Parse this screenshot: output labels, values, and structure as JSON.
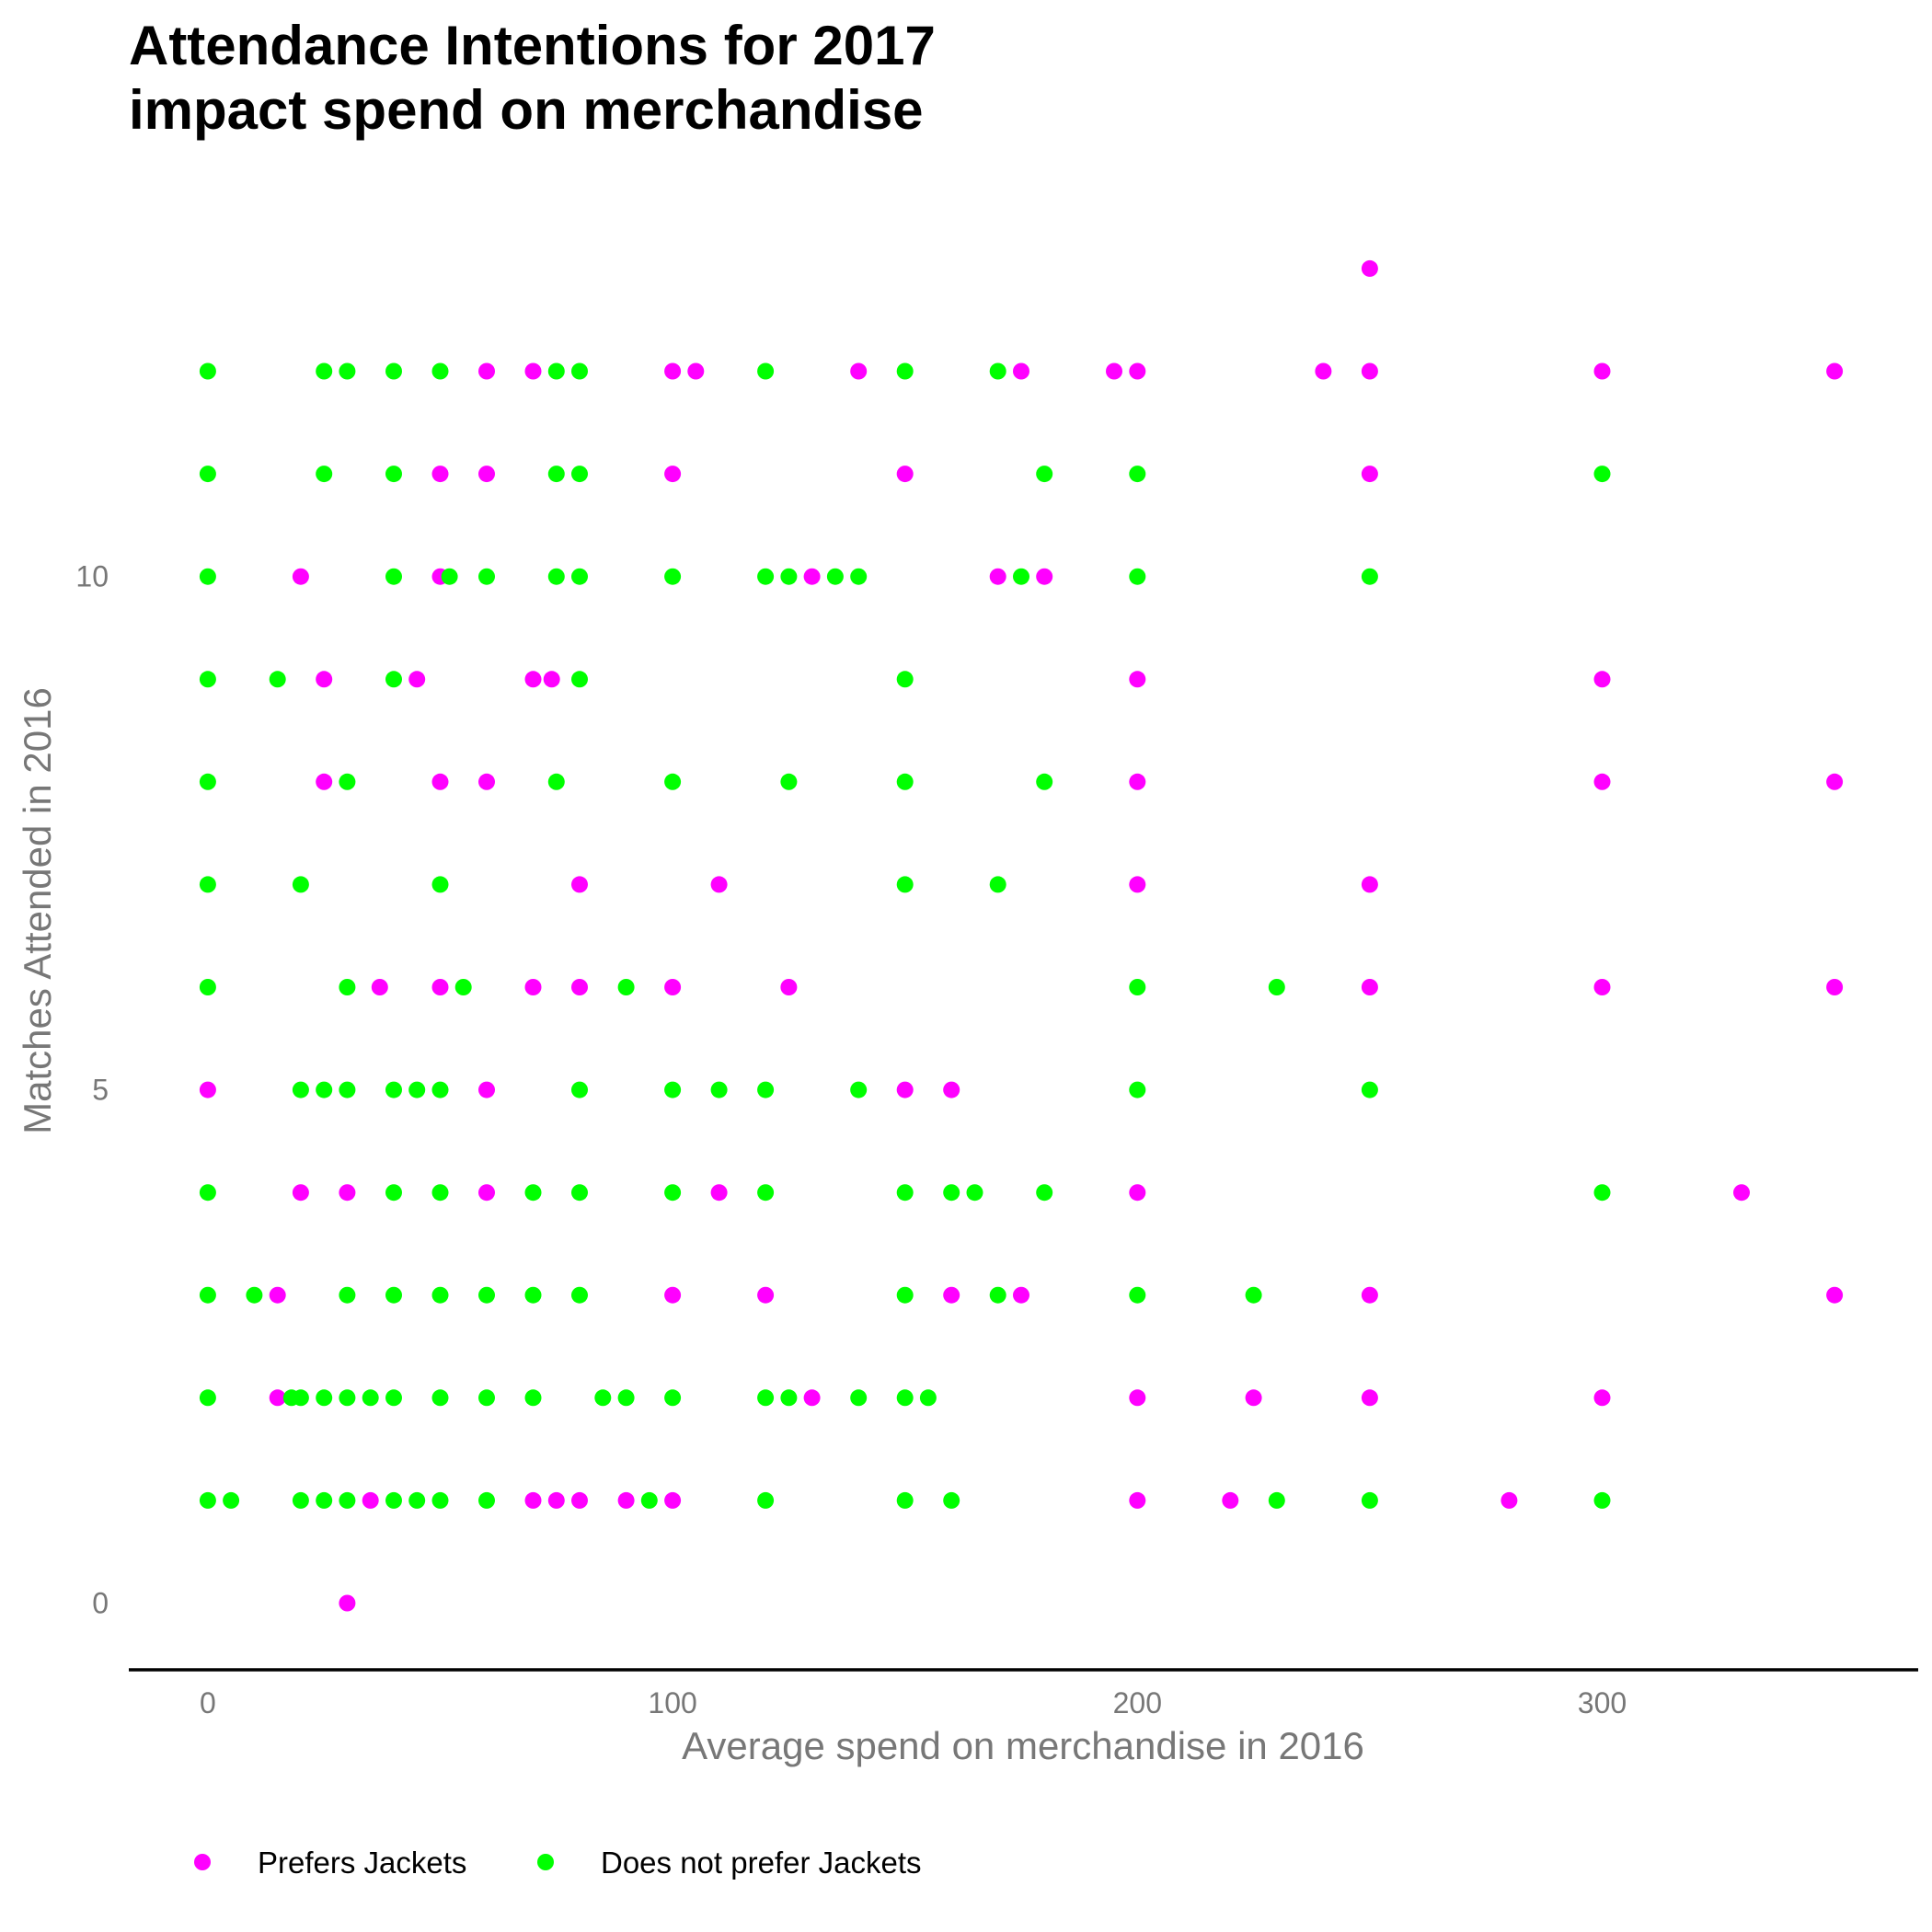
{
  "chart_data": {
    "type": "scatter",
    "title_lines": [
      "Attendance Intentions for 2017",
      "impact spend on merchandise"
    ],
    "xlabel": "Average spend on merchandise in 2016",
    "ylabel": "Matches Attended in 2016",
    "xlim": [
      -17,
      368
    ],
    "ylim": [
      -0.65,
      13.6
    ],
    "x_ticks": [
      0,
      100,
      200,
      300
    ],
    "y_ticks": [
      0,
      5,
      10
    ],
    "grid": false,
    "legend_position": "bottom-left",
    "series": [
      {
        "name": "Prefers Jackets",
        "color": "#ff00ff",
        "points": [
          [
            250,
            13
          ],
          [
            60,
            12
          ],
          [
            70,
            12
          ],
          [
            100,
            12
          ],
          [
            105,
            12
          ],
          [
            140,
            12
          ],
          [
            175,
            12
          ],
          [
            195,
            12
          ],
          [
            200,
            12
          ],
          [
            240,
            12
          ],
          [
            250,
            12
          ],
          [
            300,
            12
          ],
          [
            350,
            12
          ],
          [
            50,
            11
          ],
          [
            60,
            11
          ],
          [
            100,
            11
          ],
          [
            150,
            11
          ],
          [
            250,
            11
          ],
          [
            20,
            10
          ],
          [
            50,
            10
          ],
          [
            130,
            10
          ],
          [
            170,
            10
          ],
          [
            180,
            10
          ],
          [
            25,
            9
          ],
          [
            45,
            9
          ],
          [
            70,
            9
          ],
          [
            74,
            9
          ],
          [
            200,
            9
          ],
          [
            300,
            9
          ],
          [
            25,
            8
          ],
          [
            50,
            8
          ],
          [
            60,
            8
          ],
          [
            200,
            8
          ],
          [
            300,
            8
          ],
          [
            350,
            8
          ],
          [
            80,
            7
          ],
          [
            110,
            7
          ],
          [
            200,
            7
          ],
          [
            250,
            7
          ],
          [
            37,
            6
          ],
          [
            50,
            6
          ],
          [
            70,
            6
          ],
          [
            80,
            6
          ],
          [
            100,
            6
          ],
          [
            125,
            6
          ],
          [
            250,
            6
          ],
          [
            300,
            6
          ],
          [
            350,
            6
          ],
          [
            0,
            5
          ],
          [
            60,
            5
          ],
          [
            150,
            5
          ],
          [
            160,
            5
          ],
          [
            20,
            4
          ],
          [
            30,
            4
          ],
          [
            60,
            4
          ],
          [
            110,
            4
          ],
          [
            200,
            4
          ],
          [
            330,
            4
          ],
          [
            15,
            3
          ],
          [
            100,
            3
          ],
          [
            120,
            3
          ],
          [
            160,
            3
          ],
          [
            175,
            3
          ],
          [
            250,
            3
          ],
          [
            350,
            3
          ],
          [
            15,
            2
          ],
          [
            130,
            2
          ],
          [
            200,
            2
          ],
          [
            225,
            2
          ],
          [
            250,
            2
          ],
          [
            300,
            2
          ],
          [
            35,
            1
          ],
          [
            70,
            1
          ],
          [
            75,
            1
          ],
          [
            80,
            1
          ],
          [
            90,
            1
          ],
          [
            100,
            1
          ],
          [
            200,
            1
          ],
          [
            220,
            1
          ],
          [
            280,
            1
          ],
          [
            30,
            0
          ]
        ]
      },
      {
        "name": "Does not prefer Jackets",
        "color": "#00ff00",
        "points": [
          [
            0,
            12
          ],
          [
            25,
            12
          ],
          [
            30,
            12
          ],
          [
            40,
            12
          ],
          [
            50,
            12
          ],
          [
            75,
            12
          ],
          [
            80,
            12
          ],
          [
            120,
            12
          ],
          [
            150,
            12
          ],
          [
            170,
            12
          ],
          [
            0,
            11
          ],
          [
            25,
            11
          ],
          [
            40,
            11
          ],
          [
            75,
            11
          ],
          [
            80,
            11
          ],
          [
            180,
            11
          ],
          [
            200,
            11
          ],
          [
            300,
            11
          ],
          [
            0,
            10
          ],
          [
            40,
            10
          ],
          [
            52,
            10
          ],
          [
            60,
            10
          ],
          [
            75,
            10
          ],
          [
            80,
            10
          ],
          [
            100,
            10
          ],
          [
            120,
            10
          ],
          [
            125,
            10
          ],
          [
            135,
            10
          ],
          [
            140,
            10
          ],
          [
            175,
            10
          ],
          [
            200,
            10
          ],
          [
            250,
            10
          ],
          [
            0,
            9
          ],
          [
            15,
            9
          ],
          [
            40,
            9
          ],
          [
            80,
            9
          ],
          [
            150,
            9
          ],
          [
            0,
            8
          ],
          [
            30,
            8
          ],
          [
            75,
            8
          ],
          [
            100,
            8
          ],
          [
            125,
            8
          ],
          [
            150,
            8
          ],
          [
            180,
            8
          ],
          [
            0,
            7
          ],
          [
            20,
            7
          ],
          [
            50,
            7
          ],
          [
            150,
            7
          ],
          [
            170,
            7
          ],
          [
            0,
            6
          ],
          [
            30,
            6
          ],
          [
            55,
            6
          ],
          [
            90,
            6
          ],
          [
            200,
            6
          ],
          [
            230,
            6
          ],
          [
            20,
            5
          ],
          [
            25,
            5
          ],
          [
            30,
            5
          ],
          [
            40,
            5
          ],
          [
            45,
            5
          ],
          [
            50,
            5
          ],
          [
            80,
            5
          ],
          [
            100,
            5
          ],
          [
            110,
            5
          ],
          [
            120,
            5
          ],
          [
            140,
            5
          ],
          [
            200,
            5
          ],
          [
            250,
            5
          ],
          [
            0,
            4
          ],
          [
            40,
            4
          ],
          [
            50,
            4
          ],
          [
            70,
            4
          ],
          [
            80,
            4
          ],
          [
            100,
            4
          ],
          [
            120,
            4
          ],
          [
            150,
            4
          ],
          [
            160,
            4
          ],
          [
            165,
            4
          ],
          [
            180,
            4
          ],
          [
            300,
            4
          ],
          [
            0,
            3
          ],
          [
            10,
            3
          ],
          [
            30,
            3
          ],
          [
            40,
            3
          ],
          [
            50,
            3
          ],
          [
            60,
            3
          ],
          [
            70,
            3
          ],
          [
            80,
            3
          ],
          [
            150,
            3
          ],
          [
            170,
            3
          ],
          [
            200,
            3
          ],
          [
            225,
            3
          ],
          [
            0,
            2
          ],
          [
            18,
            2
          ],
          [
            20,
            2
          ],
          [
            25,
            2
          ],
          [
            30,
            2
          ],
          [
            35,
            2
          ],
          [
            40,
            2
          ],
          [
            50,
            2
          ],
          [
            60,
            2
          ],
          [
            70,
            2
          ],
          [
            85,
            2
          ],
          [
            90,
            2
          ],
          [
            100,
            2
          ],
          [
            120,
            2
          ],
          [
            125,
            2
          ],
          [
            140,
            2
          ],
          [
            150,
            2
          ],
          [
            155,
            2
          ],
          [
            0,
            1
          ],
          [
            5,
            1
          ],
          [
            20,
            1
          ],
          [
            25,
            1
          ],
          [
            30,
            1
          ],
          [
            40,
            1
          ],
          [
            45,
            1
          ],
          [
            50,
            1
          ],
          [
            60,
            1
          ],
          [
            95,
            1
          ],
          [
            120,
            1
          ],
          [
            150,
            1
          ],
          [
            160,
            1
          ],
          [
            230,
            1
          ],
          [
            250,
            1
          ],
          [
            300,
            1
          ]
        ]
      }
    ]
  }
}
